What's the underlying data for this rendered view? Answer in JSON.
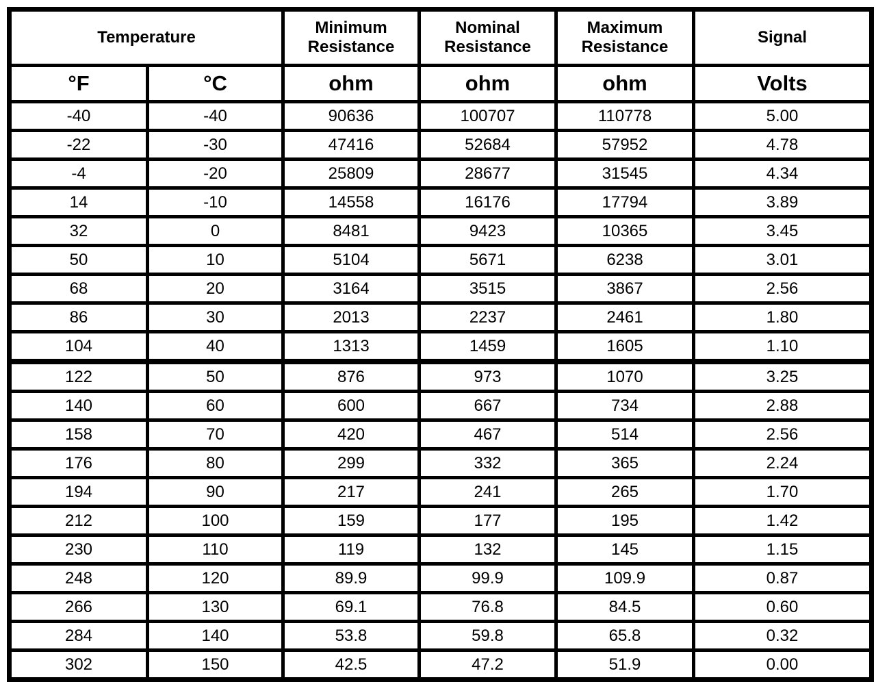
{
  "table": {
    "header_groups": {
      "temperature": "Temperature",
      "min_resistance": "Minimum Resistance",
      "nominal_resistance": "Nominal Resistance",
      "max_resistance": "Maximum Resistance",
      "signal": "Signal"
    },
    "units": {
      "fahrenheit": "°F",
      "celsius": "°C",
      "min_ohm": "ohm",
      "nominal_ohm": "ohm",
      "max_ohm": "ohm",
      "volts": "Volts"
    },
    "rows": [
      [
        "-40",
        "-40",
        "90636",
        "100707",
        "110778",
        "5.00"
      ],
      [
        "-22",
        "-30",
        "47416",
        "52684",
        "57952",
        "4.78"
      ],
      [
        "-4",
        "-20",
        "25809",
        "28677",
        "31545",
        "4.34"
      ],
      [
        "14",
        "-10",
        "14558",
        "16176",
        "17794",
        "3.89"
      ],
      [
        "32",
        "0",
        "8481",
        "9423",
        "10365",
        "3.45"
      ],
      [
        "50",
        "10",
        "5104",
        "5671",
        "6238",
        "3.01"
      ],
      [
        "68",
        "20",
        "3164",
        "3515",
        "3867",
        "2.56"
      ],
      [
        "86",
        "30",
        "2013",
        "2237",
        "2461",
        "1.80"
      ],
      [
        "104",
        "40",
        "1313",
        "1459",
        "1605",
        "1.10"
      ],
      [
        "122",
        "50",
        "876",
        "973",
        "1070",
        "3.25"
      ],
      [
        "140",
        "60",
        "600",
        "667",
        "734",
        "2.88"
      ],
      [
        "158",
        "70",
        "420",
        "467",
        "514",
        "2.56"
      ],
      [
        "176",
        "80",
        "299",
        "332",
        "365",
        "2.24"
      ],
      [
        "194",
        "90",
        "217",
        "241",
        "265",
        "1.70"
      ],
      [
        "212",
        "100",
        "159",
        "177",
        "195",
        "1.42"
      ],
      [
        "230",
        "110",
        "119",
        "132",
        "145",
        "1.15"
      ],
      [
        "248",
        "120",
        "89.9",
        "99.9",
        "109.9",
        "0.87"
      ],
      [
        "266",
        "130",
        "69.1",
        "76.8",
        "84.5",
        "0.60"
      ],
      [
        "284",
        "140",
        "53.8",
        "59.8",
        "65.8",
        "0.32"
      ],
      [
        "302",
        "150",
        "42.5",
        "47.2",
        "51.9",
        "0.00"
      ]
    ]
  }
}
